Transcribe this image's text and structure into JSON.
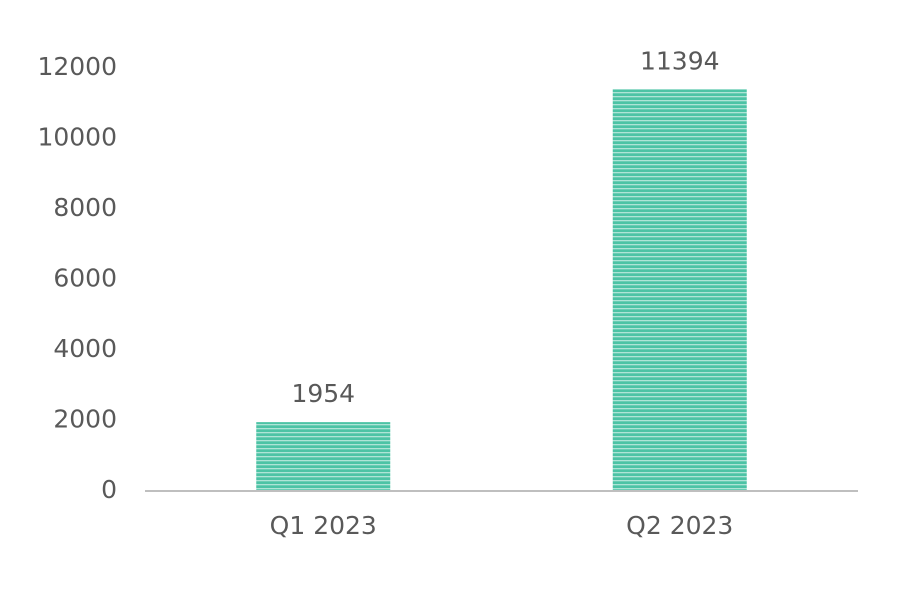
{
  "chart_data": {
    "type": "bar",
    "categories": [
      "Q1 2023",
      "Q2 2023"
    ],
    "values": [
      1954,
      11394
    ],
    "color": "#4cc3a5",
    "ylim": [
      0,
      12000
    ],
    "yticks": [
      0,
      2000,
      4000,
      6000,
      8000,
      10000,
      12000
    ],
    "grid": false
  }
}
